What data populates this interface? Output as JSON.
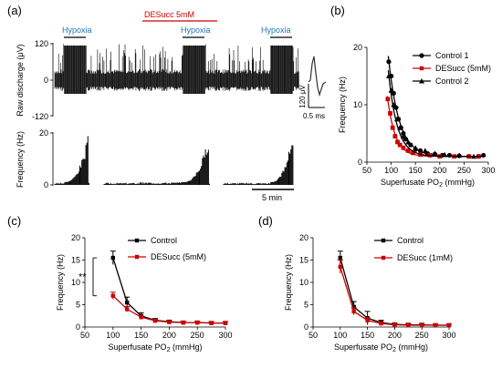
{
  "panel_labels": {
    "a": "(a)",
    "b": "(b)",
    "c": "(c)",
    "d": "(d)"
  },
  "colors": {
    "control": "#000000",
    "desucc": "#cc0000",
    "hypoxia_text": "#1f77b4",
    "desucc_text": "#cc0000"
  },
  "panel_a": {
    "raw_ylabel": "Raw discharge (μV)",
    "raw_ticks": [
      "120",
      "0",
      "-120"
    ],
    "freq_ylabel": "Frequency (Hz)",
    "freq_ticks": [
      "20",
      "0"
    ],
    "hypoxia_label": "Hypoxia",
    "desucc_label": "DESucc 5mM",
    "spike_scale_v": "120 μV",
    "spike_scale_t": "0.5 ms",
    "time_scale": "5 min"
  },
  "chart_data": [
    {
      "panel": "b",
      "type": "scatter",
      "xlabel": "Superfusate PO",
      "xlabel_sub": "2",
      "xlabel_unit": " (mmHg)",
      "ylabel": "Frequency (Hz)",
      "xlim": [
        50,
        300
      ],
      "ylim": [
        0,
        20
      ],
      "xticks": [
        50,
        100,
        150,
        200,
        250,
        300
      ],
      "yticks": [
        0,
        10,
        20
      ],
      "legend": "top-right",
      "series": [
        {
          "name": "Control 1",
          "marker": "circle",
          "color": "#000000",
          "x": [
            95,
            100,
            105,
            110,
            115,
            120,
            125,
            130,
            140,
            150,
            160,
            175,
            190,
            205,
            220,
            240,
            260,
            280,
            290
          ],
          "y": [
            17.5,
            15,
            12,
            9.5,
            7.5,
            6,
            5,
            4,
            3,
            2.2,
            2,
            1.5,
            1.4,
            1.2,
            1.2,
            1.1,
            1,
            1,
            1.2
          ],
          "fit": [
            94,
            17.5,
            22
          ]
        },
        {
          "name": "DESucc (5mM)",
          "marker": "square",
          "color": "#cc0000",
          "x": [
            93,
            98,
            103,
            108,
            113,
            118,
            125,
            135,
            145,
            160,
            180,
            200,
            230,
            260,
            280
          ],
          "y": [
            11,
            8.5,
            6,
            4.5,
            3.5,
            3,
            2.5,
            2,
            1.6,
            1.3,
            1.2,
            1,
            1,
            1,
            1
          ],
          "fit": [
            92,
            10.5,
            16
          ]
        },
        {
          "name": "Control 2",
          "marker": "triangle",
          "color": "#000000",
          "x": [
            95,
            100,
            105,
            112,
            118,
            125,
            135,
            150,
            170,
            190,
            210,
            240,
            270
          ],
          "y": [
            15,
            12.5,
            10,
            7.5,
            6,
            4.5,
            3.5,
            2.5,
            2,
            1.5,
            1.3,
            1.2,
            1
          ],
          "fit": [
            94,
            15,
            18
          ]
        }
      ]
    },
    {
      "panel": "c",
      "type": "line",
      "xlabel": "Superfusate PO",
      "xlabel_sub": "2",
      "xlabel_unit": " (mmHg)",
      "ylabel": "Frequency (Hz)",
      "xlim": [
        50,
        300
      ],
      "ylim": [
        0,
        20
      ],
      "xticks": [
        50,
        100,
        150,
        200,
        250,
        300
      ],
      "yticks": [
        0,
        5,
        10,
        15,
        20
      ],
      "legend": "top-right",
      "annotation": "**",
      "series": [
        {
          "name": "Control",
          "color": "#000000",
          "x": [
            100,
            125,
            150,
            175,
            200,
            225,
            250,
            275,
            300
          ],
          "y": [
            15.5,
            5.5,
            2.5,
            1.5,
            1.2,
            1,
            1,
            0.9,
            0.9
          ],
          "err": [
            1.5,
            1.2,
            0.7,
            0.4,
            0.3,
            0.3,
            0.3,
            0.3,
            0.3
          ]
        },
        {
          "name": "DESucc (5mM)",
          "color": "#cc0000",
          "x": [
            100,
            125,
            150,
            175,
            200,
            225,
            250,
            275,
            300
          ],
          "y": [
            7,
            4,
            2.2,
            1.4,
            1.1,
            1,
            1,
            0.9,
            0.9
          ],
          "err": [
            0.8,
            0.6,
            0.4,
            0.3,
            0.3,
            0.3,
            0.3,
            0.3,
            0.3
          ]
        }
      ]
    },
    {
      "panel": "d",
      "type": "line",
      "xlabel": "Superfusate PO",
      "xlabel_sub": "2",
      "xlabel_unit": " (mmHg)",
      "ylabel": "Frequency (Hz)",
      "xlim": [
        50,
        300
      ],
      "ylim": [
        0,
        20
      ],
      "xticks": [
        50,
        100,
        150,
        200,
        250,
        300
      ],
      "yticks": [
        0,
        5,
        10,
        15,
        20
      ],
      "legend": "top-right",
      "series": [
        {
          "name": "Control",
          "color": "#000000",
          "x": [
            100,
            125,
            150,
            175,
            200,
            225,
            250,
            275,
            300
          ],
          "y": [
            15.5,
            4.5,
            2,
            1,
            0.6,
            0.5,
            0.5,
            0.4,
            0.4
          ],
          "err": [
            1.5,
            1.2,
            1.5,
            0.5,
            0.3,
            0.3,
            0.3,
            0.3,
            0.3
          ]
        },
        {
          "name": "DESucc (1mM)",
          "color": "#cc0000",
          "x": [
            100,
            125,
            150,
            175,
            200,
            225,
            250,
            275,
            300
          ],
          "y": [
            13.5,
            3.5,
            1.5,
            0.8,
            0.5,
            0.4,
            0.4,
            0.4,
            0.4
          ],
          "err": [
            1.5,
            0.8,
            0.6,
            0.4,
            0.3,
            0.3,
            0.3,
            0.3,
            0.3
          ]
        }
      ]
    }
  ]
}
